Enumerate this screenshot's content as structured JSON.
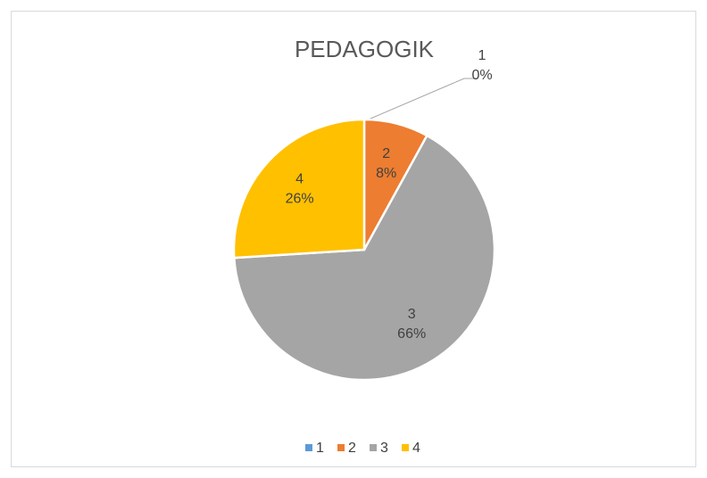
{
  "chart_data": {
    "type": "pie",
    "title": "PEDAGOGIK",
    "categories": [
      "1",
      "2",
      "3",
      "4"
    ],
    "values": [
      0,
      8,
      66,
      26
    ],
    "value_labels": [
      "0%",
      "8%",
      "66%",
      "26%"
    ],
    "colors": [
      "#5b9bd5",
      "#ed7d31",
      "#a5a5a5",
      "#ffc000"
    ],
    "legend": "bottom"
  }
}
